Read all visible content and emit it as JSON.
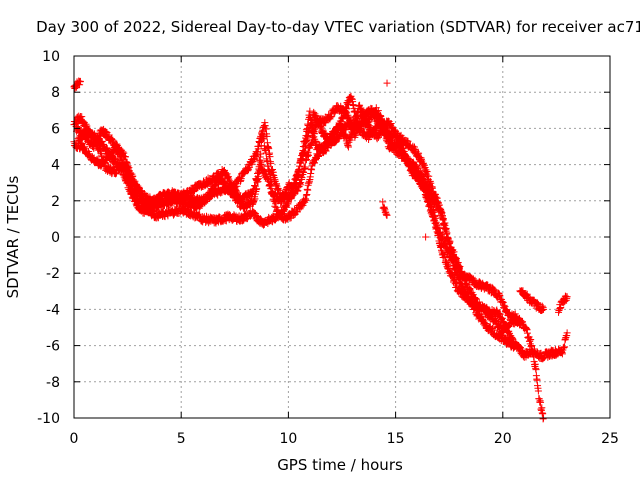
{
  "chart_data": {
    "type": "scatter",
    "title": "Day 300 of 2022, Sidereal Day-to-day VTEC variation (SDTVAR) for receiver ac71",
    "xlabel": "GPS time / hours",
    "ylabel": "SDTVAR / TECUs",
    "xlim": [
      0,
      25
    ],
    "ylim": [
      -10,
      10
    ],
    "xticks": [
      0,
      5,
      10,
      15,
      20,
      25
    ],
    "yticks": [
      -10,
      -8,
      -6,
      -4,
      -2,
      0,
      2,
      4,
      6,
      8,
      10
    ],
    "grid": true,
    "marker": "+",
    "legend": "none",
    "series": [
      {
        "name": "SDTVAR",
        "color": "#ff0000",
        "tracks": [
          [
            [
              0.0,
              8.3
            ],
            [
              0.3,
              8.6
            ]
          ],
          [
            [
              0.0,
              6.3
            ],
            [
              0.3,
              6.6
            ],
            [
              0.6,
              6.0
            ],
            [
              1.0,
              5.3
            ],
            [
              1.2,
              4.7
            ],
            [
              1.5,
              3.8
            ],
            [
              1.9,
              3.6
            ],
            [
              2.3,
              4.1
            ],
            [
              2.6,
              3.5
            ],
            [
              2.9,
              2.8
            ],
            [
              3.2,
              2.3
            ],
            [
              3.6,
              2.0
            ],
            [
              4.2,
              1.9
            ],
            [
              4.8,
              2.0
            ],
            [
              5.3,
              1.8
            ],
            [
              5.8,
              1.7
            ],
            [
              6.3,
              2.3
            ],
            [
              6.8,
              3.3
            ],
            [
              7.0,
              3.8
            ],
            [
              7.3,
              2.9
            ],
            [
              7.8,
              2.1
            ],
            [
              8.3,
              2.4
            ],
            [
              8.6,
              3.5
            ],
            [
              8.8,
              5.8
            ],
            [
              9.0,
              4.3
            ],
            [
              9.3,
              2.3
            ],
            [
              9.7,
              2.0
            ],
            [
              10.0,
              2.8
            ],
            [
              10.3,
              3.0
            ],
            [
              10.6,
              4.2
            ],
            [
              10.9,
              5.5
            ],
            [
              11.2,
              6.8
            ],
            [
              11.6,
              5.8
            ],
            [
              12.0,
              5.2
            ],
            [
              12.4,
              5.6
            ],
            [
              12.8,
              6.3
            ],
            [
              13.2,
              6.1
            ],
            [
              13.7,
              6.4
            ],
            [
              14.1,
              7.1
            ],
            [
              14.4,
              6.2
            ],
            [
              14.8,
              5.0
            ],
            [
              15.2,
              4.6
            ],
            [
              15.7,
              4.0
            ],
            [
              16.0,
              3.3
            ],
            [
              16.4,
              2.6
            ],
            [
              16.8,
              1.3
            ],
            [
              17.1,
              -0.6
            ],
            [
              17.5,
              -1.8
            ],
            [
              17.9,
              -2.9
            ],
            [
              18.3,
              -3.4
            ],
            [
              18.8,
              -3.8
            ],
            [
              19.3,
              -4.1
            ],
            [
              19.8,
              -4.2
            ],
            [
              20.2,
              -5.2
            ],
            [
              20.6,
              -6.0
            ],
            [
              21.0,
              -6.5
            ],
            [
              21.4,
              -6.3
            ],
            [
              21.8,
              -6.6
            ],
            [
              22.3,
              -6.4
            ],
            [
              22.8,
              -6.3
            ],
            [
              23.0,
              -5.3
            ]
          ],
          [
            [
              0.0,
              5.1
            ],
            [
              0.4,
              5.0
            ],
            [
              0.8,
              4.4
            ],
            [
              1.2,
              4.0
            ],
            [
              1.6,
              4.4
            ],
            [
              2.0,
              5.1
            ],
            [
              2.4,
              4.3
            ],
            [
              2.8,
              3.0
            ],
            [
              3.3,
              1.6
            ],
            [
              3.8,
              1.2
            ],
            [
              4.4,
              1.3
            ],
            [
              5.0,
              1.5
            ],
            [
              5.5,
              1.3
            ],
            [
              6.0,
              1.0
            ],
            [
              6.6,
              0.9
            ],
            [
              7.2,
              1.1
            ],
            [
              7.8,
              1.0
            ],
            [
              8.3,
              1.3
            ],
            [
              8.8,
              0.8
            ],
            [
              9.3,
              1.0
            ],
            [
              9.7,
              1.4
            ],
            [
              10.0,
              1.9
            ],
            [
              10.5,
              3.8
            ],
            [
              11.0,
              6.8
            ],
            [
              11.3,
              5.0
            ],
            [
              11.7,
              4.8
            ],
            [
              12.1,
              5.6
            ],
            [
              12.5,
              6.5
            ],
            [
              12.9,
              7.8
            ],
            [
              13.3,
              5.9
            ],
            [
              13.8,
              5.5
            ],
            [
              14.3,
              6.6
            ],
            [
              14.7,
              5.0
            ],
            [
              15.1,
              5.2
            ],
            [
              15.5,
              4.3
            ],
            [
              15.9,
              3.9
            ],
            [
              16.3,
              3.2
            ],
            [
              16.7,
              2.1
            ],
            [
              17.1,
              1.5
            ],
            [
              17.4,
              0.0
            ],
            [
              17.8,
              -1.2
            ],
            [
              18.2,
              -2.4
            ],
            [
              18.6,
              -3.3
            ],
            [
              19.0,
              -3.9
            ],
            [
              19.5,
              -4.5
            ],
            [
              20.0,
              -5.2
            ],
            [
              20.4,
              -4.6
            ],
            [
              20.8,
              -4.8
            ]
          ],
          [
            [
              0.1,
              6.0
            ],
            [
              0.5,
              5.6
            ],
            [
              0.9,
              5.0
            ],
            [
              1.3,
              5.9
            ],
            [
              1.7,
              5.4
            ],
            [
              2.1,
              4.6
            ],
            [
              2.5,
              3.3
            ],
            [
              3.0,
              2.0
            ],
            [
              3.5,
              1.8
            ],
            [
              4.1,
              2.3
            ],
            [
              4.7,
              2.4
            ],
            [
              5.3,
              2.2
            ],
            [
              5.9,
              2.0
            ],
            [
              6.5,
              2.4
            ],
            [
              7.0,
              2.6
            ],
            [
              7.5,
              2.8
            ],
            [
              8.0,
              3.6
            ],
            [
              8.5,
              4.6
            ],
            [
              8.9,
              6.3
            ],
            [
              9.2,
              3.8
            ],
            [
              9.6,
              2.3
            ],
            [
              10.1,
              2.2
            ],
            [
              10.5,
              2.8
            ],
            [
              10.9,
              4.5
            ],
            [
              11.3,
              6.3
            ],
            [
              11.8,
              6.5
            ],
            [
              12.3,
              7.2
            ],
            [
              12.7,
              6.8
            ],
            [
              13.1,
              5.6
            ],
            [
              13.5,
              6.8
            ],
            [
              13.9,
              7.0
            ],
            [
              14.3,
              6.0
            ],
            [
              14.7,
              5.6
            ],
            [
              15.1,
              5.6
            ],
            [
              15.5,
              5.2
            ],
            [
              15.9,
              4.8
            ],
            [
              16.3,
              4.0
            ],
            [
              16.6,
              3.0
            ],
            [
              17.0,
              1.8
            ],
            [
              17.3,
              0.6
            ],
            [
              17.6,
              -0.8
            ],
            [
              18.0,
              -2.0
            ],
            [
              18.4,
              -2.3
            ],
            [
              18.8,
              -2.6
            ],
            [
              19.3,
              -2.8
            ],
            [
              19.8,
              -3.2
            ],
            [
              20.2,
              -4.2
            ],
            [
              20.6,
              -4.4
            ],
            [
              21.0,
              -4.9
            ],
            [
              21.3,
              -5.8
            ],
            [
              21.5,
              -7.0
            ],
            [
              21.6,
              -8.0
            ],
            [
              21.7,
              -9.0
            ],
            [
              21.9,
              -10.0
            ]
          ],
          [
            [
              0.2,
              5.4
            ],
            [
              0.6,
              5.8
            ],
            [
              1.0,
              5.5
            ],
            [
              1.4,
              5.0
            ],
            [
              1.8,
              4.3
            ],
            [
              2.2,
              3.8
            ],
            [
              2.6,
              2.6
            ],
            [
              3.1,
              1.4
            ],
            [
              3.7,
              1.6
            ],
            [
              4.3,
              2.0
            ],
            [
              4.9,
              2.2
            ],
            [
              5.5,
              2.6
            ],
            [
              6.1,
              3.0
            ],
            [
              6.7,
              3.4
            ],
            [
              7.3,
              2.5
            ],
            [
              7.9,
              1.6
            ],
            [
              8.4,
              2.0
            ],
            [
              8.7,
              4.0
            ],
            [
              9.1,
              3.0
            ],
            [
              9.5,
              1.3
            ],
            [
              9.9,
              1.0
            ],
            [
              10.3,
              1.4
            ],
            [
              10.8,
              2.0
            ],
            [
              11.1,
              4.0
            ],
            [
              11.5,
              4.8
            ],
            [
              11.9,
              5.4
            ],
            [
              12.4,
              6.2
            ],
            [
              12.8,
              5.1
            ],
            [
              13.3,
              7.2
            ],
            [
              13.8,
              6.0
            ],
            [
              14.2,
              5.5
            ],
            [
              14.6,
              6.4
            ],
            [
              15.0,
              5.8
            ],
            [
              15.4,
              4.6
            ],
            [
              15.8,
              3.5
            ],
            [
              16.2,
              3.2
            ],
            [
              16.5,
              2.0
            ],
            [
              16.9,
              0.5
            ],
            [
              17.3,
              -0.4
            ],
            [
              17.7,
              -1.5
            ],
            [
              18.1,
              -2.8
            ],
            [
              18.5,
              -3.6
            ],
            [
              18.9,
              -4.4
            ],
            [
              19.3,
              -5.0
            ],
            [
              19.7,
              -5.4
            ],
            [
              20.1,
              -5.7
            ],
            [
              20.5,
              -6.0
            ],
            [
              20.8,
              -6.2
            ]
          ],
          [
            [
              14.4,
              1.8
            ],
            [
              14.6,
              1.2
            ]
          ],
          [
            [
              14.6,
              8.5
            ]
          ],
          [
            [
              16.4,
              0.0
            ]
          ],
          [
            [
              20.8,
              -2.9
            ],
            [
              21.2,
              -3.4
            ],
            [
              21.6,
              -3.8
            ],
            [
              21.9,
              -4.0
            ]
          ],
          [
            [
              22.6,
              -4.0
            ],
            [
              22.8,
              -3.6
            ],
            [
              23.0,
              -3.3
            ]
          ]
        ]
      }
    ]
  }
}
